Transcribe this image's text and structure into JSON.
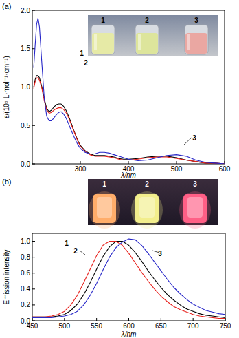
{
  "chart_data": [
    {
      "type": "line",
      "title": "(a)",
      "xlabel": "λ/nm",
      "ylabel": "ε/(10⁵ L·mol⁻¹·cm⁻¹)",
      "x": [
        203,
        206,
        209,
        212,
        215,
        220,
        225,
        230,
        235,
        240,
        245,
        250,
        255,
        260,
        265,
        270,
        275,
        280,
        285,
        290,
        295,
        300,
        310,
        320,
        330,
        340,
        350,
        360,
        370,
        380,
        390,
        400,
        420,
        440,
        460,
        480,
        500,
        520,
        540,
        560,
        580,
        600
      ],
      "series": [
        {
          "name": "1",
          "color": "#000000",
          "values": [
            1.0,
            1.1,
            1.15,
            1.15,
            1.12,
            1.0,
            0.85,
            0.72,
            0.68,
            0.7,
            0.74,
            0.77,
            0.78,
            0.78,
            0.75,
            0.7,
            0.63,
            0.55,
            0.46,
            0.38,
            0.3,
            0.24,
            0.17,
            0.13,
            0.11,
            0.11,
            0.11,
            0.1,
            0.09,
            0.07,
            0.06,
            0.06,
            0.07,
            0.09,
            0.1,
            0.1,
            0.08,
            0.05,
            0.03,
            0.01,
            0.01,
            0
          ]
        },
        {
          "name": "2",
          "color": "#e8201c",
          "values": [
            0.98,
            1.07,
            1.12,
            1.12,
            1.09,
            0.98,
            0.82,
            0.7,
            0.66,
            0.67,
            0.7,
            0.72,
            0.73,
            0.73,
            0.71,
            0.67,
            0.61,
            0.53,
            0.45,
            0.37,
            0.29,
            0.23,
            0.16,
            0.12,
            0.1,
            0.1,
            0.1,
            0.09,
            0.08,
            0.06,
            0.05,
            0.05,
            0.06,
            0.08,
            0.09,
            0.09,
            0.07,
            0.05,
            0.03,
            0.01,
            0.01,
            0
          ]
        },
        {
          "name": "3",
          "color": "#2626c8",
          "values": [
            1.25,
            1.55,
            1.82,
            1.9,
            1.78,
            1.3,
            0.85,
            0.62,
            0.56,
            0.56,
            0.6,
            0.64,
            0.67,
            0.68,
            0.65,
            0.6,
            0.53,
            0.45,
            0.38,
            0.31,
            0.25,
            0.2,
            0.15,
            0.13,
            0.13,
            0.15,
            0.15,
            0.14,
            0.12,
            0.1,
            0.08,
            0.06,
            0.04,
            0.05,
            0.08,
            0.11,
            0.12,
            0.1,
            0.05,
            0.02,
            0.01,
            0
          ]
        }
      ],
      "xlim": [
        200,
        600
      ],
      "xticks": [
        300,
        400,
        500,
        600
      ],
      "ylim": [
        0,
        2.0
      ],
      "yticks": [
        {
          "value": 0,
          "label": "0.0"
        },
        0.5,
        {
          "value": 1,
          "label": "1.0"
        },
        1.5,
        {
          "value": 2,
          "label": "2.0"
        }
      ],
      "grid": false
    },
    {
      "type": "line",
      "title": "(b)",
      "xlabel": "λ/nm",
      "ylabel": "Emission intensity",
      "x": [
        450,
        460,
        470,
        480,
        490,
        500,
        510,
        520,
        530,
        540,
        550,
        560,
        570,
        580,
        590,
        600,
        610,
        620,
        630,
        640,
        650,
        660,
        670,
        680,
        690,
        700,
        710,
        720,
        730,
        740,
        750
      ],
      "series": [
        {
          "name": "1",
          "color": "#000000",
          "values": [
            0.05,
            0.05,
            0.05,
            0.05,
            0.06,
            0.08,
            0.13,
            0.21,
            0.33,
            0.48,
            0.65,
            0.81,
            0.93,
            1.0,
            1.0,
            0.95,
            0.86,
            0.75,
            0.63,
            0.52,
            0.42,
            0.33,
            0.26,
            0.2,
            0.15,
            0.12,
            0.09,
            0.07,
            0.06,
            0.05,
            0.04
          ]
        },
        {
          "name": "2",
          "color": "#e8201c",
          "values": [
            0.05,
            0.05,
            0.05,
            0.06,
            0.08,
            0.12,
            0.2,
            0.32,
            0.48,
            0.65,
            0.82,
            0.95,
            1.0,
            1.0,
            0.95,
            0.85,
            0.73,
            0.61,
            0.5,
            0.4,
            0.31,
            0.24,
            0.18,
            0.14,
            0.11,
            0.08,
            0.06,
            0.05,
            0.04,
            0.03,
            0.03
          ]
        },
        {
          "name": "3",
          "color": "#2626c8",
          "values": [
            0.04,
            0.04,
            0.04,
            0.04,
            0.05,
            0.06,
            0.08,
            0.12,
            0.2,
            0.32,
            0.47,
            0.64,
            0.8,
            0.92,
            0.99,
            1.03,
            1.02,
            0.95,
            0.85,
            0.74,
            0.63,
            0.52,
            0.42,
            0.34,
            0.27,
            0.21,
            0.17,
            0.13,
            0.11,
            0.09,
            0.08
          ]
        }
      ],
      "xlim": [
        450,
        750
      ],
      "xticks": [
        450,
        500,
        550,
        600,
        650,
        700,
        750
      ],
      "ylim": [
        0,
        1.1
      ],
      "yticks": [
        {
          "value": 0,
          "label": "0.0"
        },
        0.2,
        0.4,
        0.6,
        0.8,
        {
          "value": 1,
          "label": "1.0"
        }
      ],
      "grid": false
    }
  ]
}
